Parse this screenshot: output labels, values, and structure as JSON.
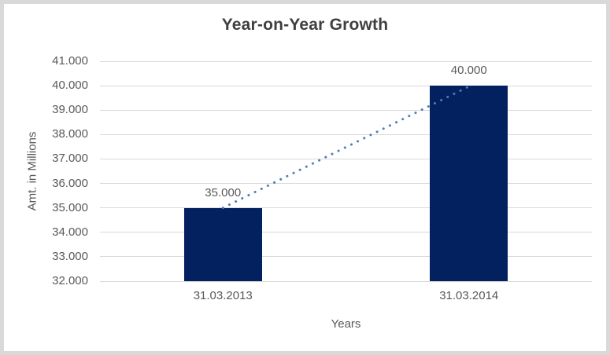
{
  "chart_data": {
    "type": "bar",
    "title": "Year-on-Year Growth",
    "xlabel": "Years",
    "ylabel": "Amt. in Millions",
    "categories": [
      "31.03.2013",
      "31.03.2014"
    ],
    "values": [
      35000,
      40000
    ],
    "data_labels": [
      "35.000",
      "40.000"
    ],
    "ylim": [
      32000,
      41000
    ],
    "ytick_step": 1000,
    "ytick_labels": [
      "32.000",
      "33.000",
      "34.000",
      "35.000",
      "36.000",
      "37.000",
      "38.000",
      "39.000",
      "40.000",
      "41.000"
    ],
    "grid": true,
    "legend": "none",
    "trendline": {
      "style": "dotted",
      "from": {
        "category": "31.03.2013",
        "value": 35000
      },
      "to": {
        "category": "31.03.2014",
        "value": 40000
      }
    }
  },
  "colors": {
    "bar": "#02215E",
    "trendline": "#4A7EBB",
    "gridline": "#D9D9D9",
    "frame_border": "#D9D9D9",
    "title_text": "#3F3F3F",
    "axis_text": "#595959",
    "background": "#FFFFFF"
  }
}
